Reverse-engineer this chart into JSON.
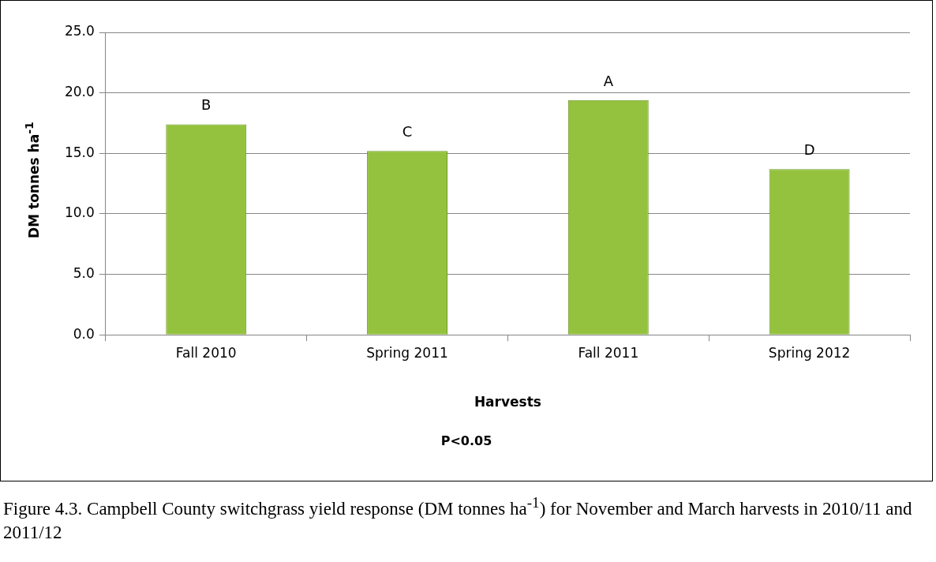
{
  "chart_data": {
    "type": "bar",
    "title": "Figure 4.3. Campbell County switchgrass yield response (DM tonnes ha$^{-1}$) for November and March harvests in 2010/11 and 2011/12",
    "xlabel": "Harvests",
    "ylabel": "DM tonnes ha$^{-1}$",
    "categories": [
      "Fall 2010",
      "Spring 2011",
      "Fall 2011",
      "Spring 2012"
    ],
    "values": [
      17.4,
      15.2,
      19.4,
      13.7
    ],
    "color": "#94c23e",
    "ylim": [
      0,
      25
    ],
    "yticks": [
      {
        "value": 0,
        "label": "0.0"
      },
      {
        "value": 5,
        "label": "5.0"
      },
      {
        "value": 10,
        "label": "10.0"
      },
      {
        "value": 15,
        "label": "15.0"
      },
      {
        "value": 20,
        "label": "20.0"
      },
      {
        "value": 25,
        "label": "25.0"
      }
    ],
    "grid": "y",
    "annotations": [
      {
        "text": "B",
        "x": "Fall 2010",
        "y": 17.4
      },
      {
        "text": "C",
        "x": "Spring 2011",
        "y": 15.2
      },
      {
        "text": "A",
        "x": "Fall 2011",
        "y": 19.4
      },
      {
        "text": "D",
        "x": "Spring 2012",
        "y": 13.7
      },
      "P<0.05"
    ]
  }
}
